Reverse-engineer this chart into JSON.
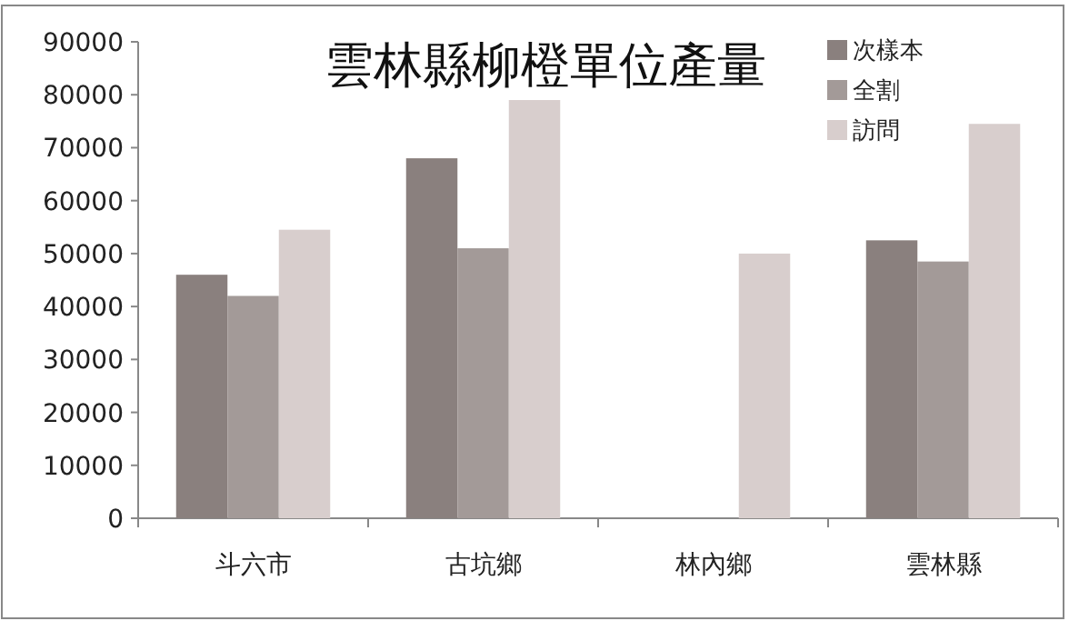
{
  "chart_data": {
    "type": "bar",
    "title": "雲林縣柳橙單位產量",
    "categories": [
      "斗六市",
      "古坑鄉",
      "林內鄉",
      "雲林縣"
    ],
    "series": [
      {
        "name": "次樣本",
        "color": "#8a807e",
        "values": [
          46000,
          68000,
          null,
          52500
        ]
      },
      {
        "name": "全割",
        "color": "#a39a98",
        "values": [
          42000,
          51000,
          null,
          48500
        ]
      },
      {
        "name": "訪問",
        "color": "#d8cecd",
        "values": [
          54500,
          79000,
          50000,
          74500
        ]
      }
    ],
    "ylim": [
      0,
      90000
    ],
    "yticks": [
      0,
      10000,
      20000,
      30000,
      40000,
      50000,
      60000,
      70000,
      80000,
      90000
    ],
    "legend": "top right"
  }
}
